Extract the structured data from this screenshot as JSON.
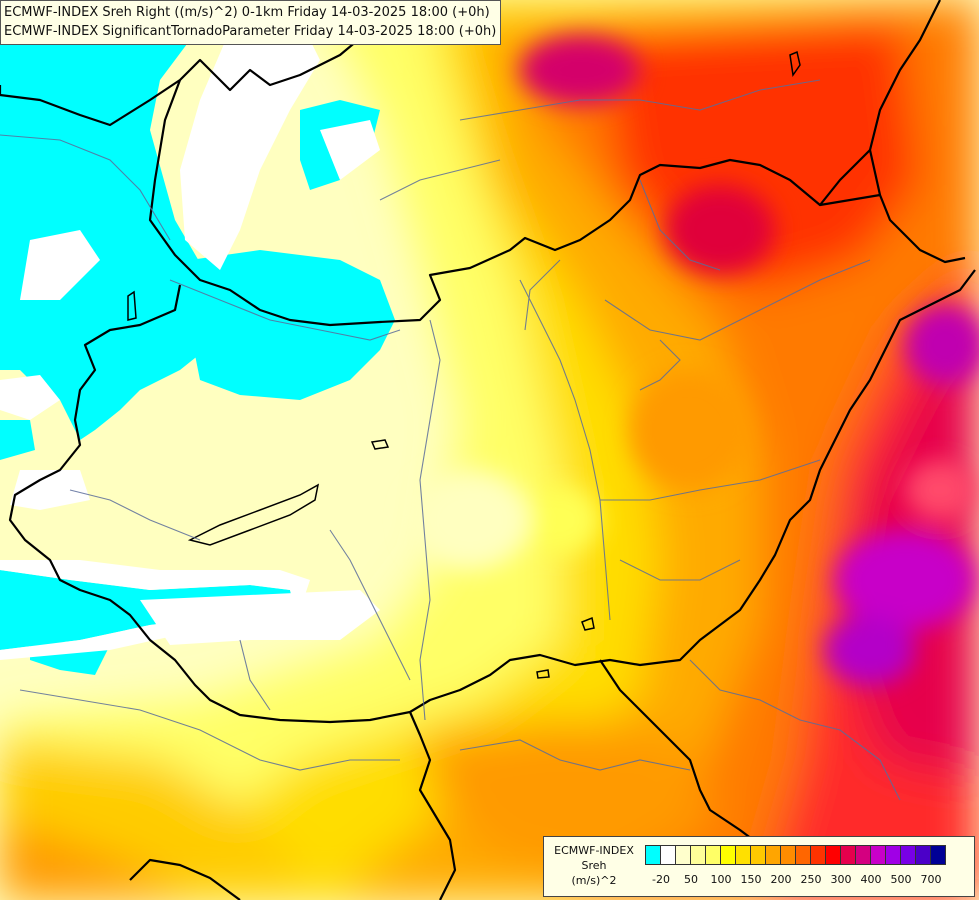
{
  "map": {
    "title_line_1": "ECMWF-INDEX Sreh Right ((m/s)^2) 0-1km Friday 14-03-2025 18:00 (+0h)",
    "title_line_2": "ECMWF-INDEX SignificantTornadoParameter Friday 14-03-2025 18:00 (+0h)"
  },
  "legend": {
    "title_line_1": "ECMWF-INDEX",
    "title_line_2": "Sreh",
    "title_line_3": "(m/s)^2",
    "colors": [
      "#00ffff",
      "#ffffff",
      "#ffffcc",
      "#ffff99",
      "#ffff66",
      "#ffff00",
      "#ffe000",
      "#ffc800",
      "#ffa500",
      "#ff8c00",
      "#ff6600",
      "#ff3300",
      "#ff0000",
      "#e6004c",
      "#d40080",
      "#c800c8",
      "#a000e6",
      "#7800e6",
      "#4b00c8",
      "#000096"
    ],
    "tick_labels": [
      "-20",
      "50",
      "100",
      "150",
      "200",
      "250",
      "300",
      "400",
      "500",
      "700"
    ],
    "icon": "color-scale"
  }
}
